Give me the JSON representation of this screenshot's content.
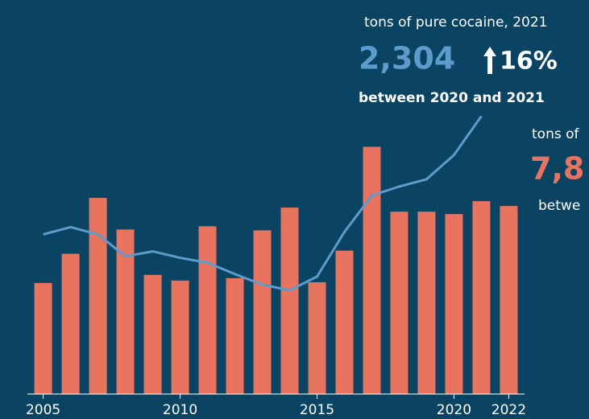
{
  "chart_data": {
    "type": "bar_line",
    "x": [
      2005,
      2006,
      2007,
      2008,
      2009,
      2010,
      2011,
      2012,
      2013,
      2014,
      2015,
      2016,
      2017,
      2018,
      2019,
      2020,
      2021,
      2022
    ],
    "xticks": [
      2005,
      2010,
      2015,
      2020,
      2022
    ],
    "xlim": [
      2004.6,
      2022.4
    ],
    "ylim": [
      0,
      2400
    ],
    "series": [
      {
        "name": "bars",
        "kind": "bar",
        "color": "#e8735f",
        "values": [
          921,
          1163,
          1626,
          1364,
          988,
          941,
          1391,
          961,
          1357,
          1546,
          927,
          1189,
          2050,
          1512,
          1512,
          1492,
          1599,
          1559
        ]
      },
      {
        "name": "tons of pure cocaine",
        "kind": "line",
        "color": "#5b9ccc",
        "values": [
          1324,
          1384,
          1324,
          1142,
          1183,
          1129,
          1089,
          995,
          907,
          860,
          974,
          1344,
          1646,
          1720,
          1781,
          1982,
          2304,
          null
        ]
      }
    ],
    "annotations": {
      "cocaine_caption": "tons of pure cocaine, 2021",
      "cocaine_value": "2,304",
      "cocaine_change": "16%",
      "cocaine_period": "between  2020 and 2021",
      "right_caption": "tons of",
      "right_value": "7,8",
      "right_period": "betwe"
    }
  }
}
